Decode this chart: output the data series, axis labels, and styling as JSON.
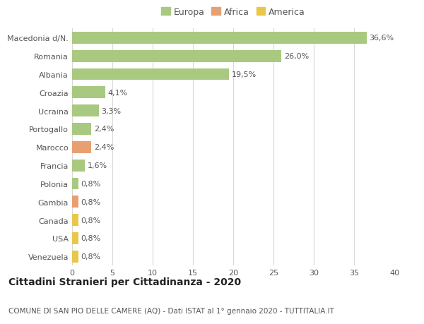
{
  "categories": [
    "Macedonia d/N.",
    "Romania",
    "Albania",
    "Croazia",
    "Ucraina",
    "Portogallo",
    "Marocco",
    "Francia",
    "Polonia",
    "Gambia",
    "Canada",
    "USA",
    "Venezuela"
  ],
  "values": [
    36.6,
    26.0,
    19.5,
    4.1,
    3.3,
    2.4,
    2.4,
    1.6,
    0.8,
    0.8,
    0.8,
    0.8,
    0.8
  ],
  "labels": [
    "36,6%",
    "26,0%",
    "19,5%",
    "4,1%",
    "3,3%",
    "2,4%",
    "2,4%",
    "1,6%",
    "0,8%",
    "0,8%",
    "0,8%",
    "0,8%",
    "0,8%"
  ],
  "colors": [
    "#a8c97f",
    "#a8c97f",
    "#a8c97f",
    "#a8c97f",
    "#a8c97f",
    "#a8c97f",
    "#e8a070",
    "#a8c97f",
    "#a8c97f",
    "#e8a070",
    "#e8c84a",
    "#e8c84a",
    "#e8c84a"
  ],
  "legend_labels": [
    "Europa",
    "Africa",
    "America"
  ],
  "legend_colors": [
    "#a8c97f",
    "#e8a070",
    "#e8c84a"
  ],
  "xlim": [
    0,
    40
  ],
  "xticks": [
    0,
    5,
    10,
    15,
    20,
    25,
    30,
    35,
    40
  ],
  "title": "Cittadini Stranieri per Cittadinanza - 2020",
  "subtitle": "COMUNE DI SAN PIO DELLE CAMERE (AQ) - Dati ISTAT al 1° gennaio 2020 - TUTTITALIA.IT",
  "background_color": "#ffffff",
  "grid_color": "#d8d8d8",
  "bar_height": 0.65,
  "title_fontsize": 10,
  "subtitle_fontsize": 7.5,
  "tick_fontsize": 8,
  "label_fontsize": 8,
  "legend_fontsize": 9
}
